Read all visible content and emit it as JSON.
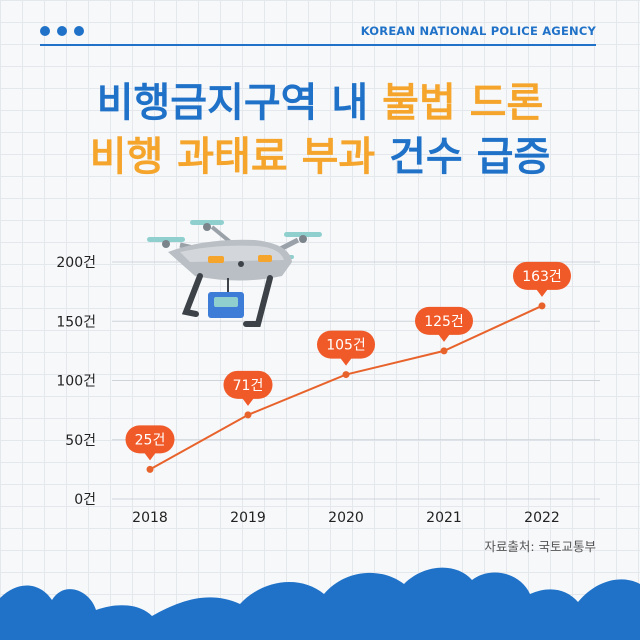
{
  "header": {
    "agency": "KOREAN NATIONAL POLICE AGENCY",
    "title_line1_a": "비행금지구역 내",
    "title_line1_b": "불법 드론",
    "title_line2_a": "비행 과태료 부과",
    "title_line2_b": "건수 급증"
  },
  "source": "자료출처: 국토교통부",
  "colors": {
    "brand_blue": "#1f72c8",
    "accent_orange": "#f5a52c",
    "line_orange": "#e8632c",
    "label_bubble": "#f05a28"
  },
  "icons": [
    "drone-illustration-icon",
    "menu-dots-icon"
  ],
  "chart_data": {
    "type": "line",
    "title": "",
    "xlabel": "",
    "ylabel": "",
    "categories": [
      "2018",
      "2019",
      "2020",
      "2021",
      "2022"
    ],
    "values": [
      25,
      71,
      105,
      125,
      163
    ],
    "data_labels": [
      "25건",
      "71건",
      "105건",
      "125건",
      "163건"
    ],
    "y_ticks": [
      0,
      50,
      100,
      150,
      200
    ],
    "y_tick_labels": [
      "0건",
      "50건",
      "100건",
      "150건",
      "200건"
    ],
    "ylim": [
      0,
      200
    ],
    "grid": true,
    "legend": "none"
  }
}
